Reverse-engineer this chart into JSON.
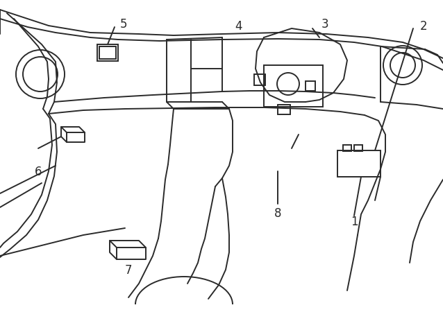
{
  "background_color": "#ffffff",
  "line_color": "#2a2a2a",
  "line_width": 1.4,
  "fig_width": 6.38,
  "fig_height": 4.64,
  "dpi": 100,
  "label_fontsize": 12
}
